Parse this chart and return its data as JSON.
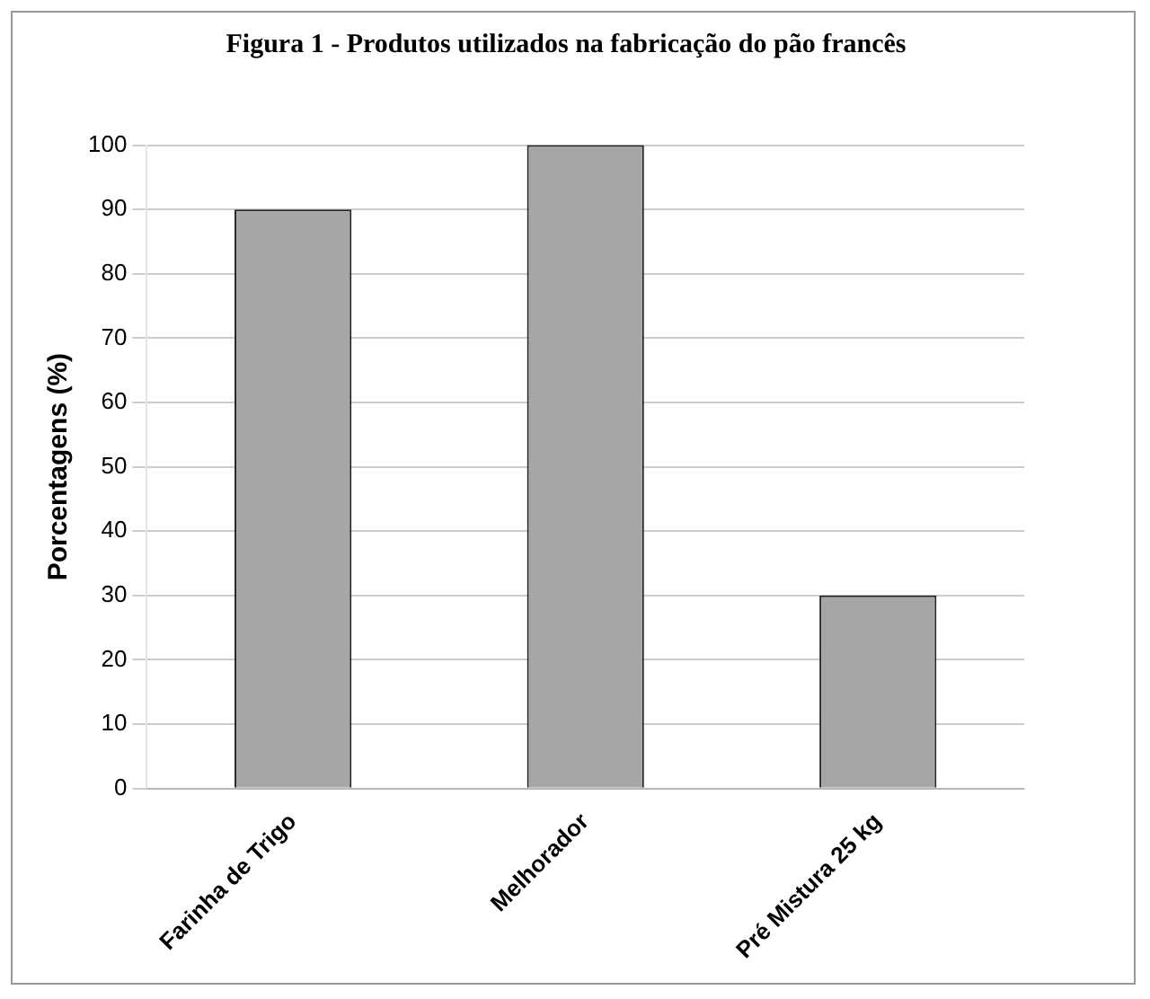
{
  "chart_data": {
    "type": "bar",
    "title": "Figura 1 - Produtos utilizados na fabricação do pão francês",
    "ylabel": "Porcentagens (%)",
    "categories": [
      "Farinha de Trigo",
      "Melhorador",
      "Pré Mistura 25 kg"
    ],
    "values": [
      90,
      100,
      30
    ],
    "color": "#a6a6a6",
    "ylim": [
      0,
      100
    ],
    "yticks": [
      0,
      10,
      20,
      30,
      40,
      50,
      60,
      70,
      80,
      90,
      100
    ],
    "grid": "y"
  }
}
